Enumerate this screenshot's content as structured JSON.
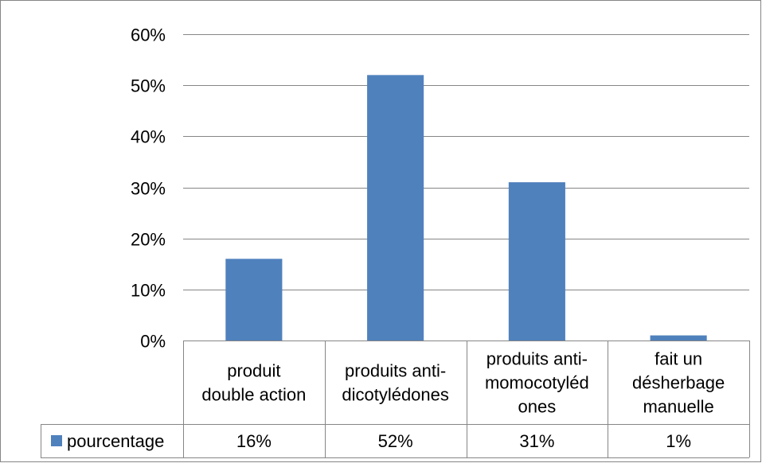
{
  "chart_data": {
    "type": "bar",
    "title": "",
    "xlabel": "",
    "ylabel": "",
    "ylim": [
      0,
      60
    ],
    "y_ticks": [
      0,
      10,
      20,
      30,
      40,
      50,
      60
    ],
    "y_tick_labels": [
      "0%",
      "10%",
      "20%",
      "30%",
      "40%",
      "50%",
      "60%"
    ],
    "categories": [
      [
        "produit",
        "double action"
      ],
      [
        "produits anti-",
        "dicotylédones"
      ],
      [
        "produits anti-",
        "momocotyléd",
        "ones"
      ],
      [
        "fait un",
        "désherbage",
        "manuelle"
      ]
    ],
    "series": [
      {
        "name": "pourcentage",
        "color": "#4f81bd",
        "values": [
          16,
          52,
          31,
          1
        ],
        "value_labels": [
          "16%",
          "52%",
          "31%",
          "1%"
        ]
      }
    ],
    "grid": true,
    "legend": "data-table-left",
    "gridline_color": "#868686",
    "border_color": "#868686"
  }
}
